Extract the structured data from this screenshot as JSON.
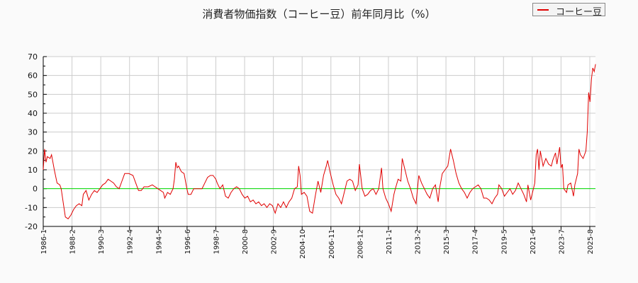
{
  "title": "消費者物価指数（コーヒー豆）前年同月比（%）",
  "legend": {
    "label": "コーヒー豆",
    "color": "#e00000"
  },
  "colors": {
    "series": "#e00000",
    "zero_line": "#00dd00",
    "grid": "#cccccc",
    "axis": "#000000",
    "background": "#fafafa"
  },
  "chart_data": {
    "type": "line",
    "title": "消費者物価指数（コーヒー豆）前年同月比（%）",
    "xlabel": "",
    "ylabel": "",
    "ylim": [
      -20,
      70
    ],
    "yticks": [
      -20,
      -10,
      0,
      10,
      20,
      30,
      40,
      50,
      60,
      70
    ],
    "xticks": [
      "1986-1",
      "1988-2",
      "1990-3",
      "1992-4",
      "1994-5",
      "1996-6",
      "1998-7",
      "2000-8",
      "2002-9",
      "2004-10",
      "2006-11",
      "2008-12",
      "2011-1",
      "2013-2",
      "2015-3",
      "2017-4",
      "2019-5",
      "2021-6",
      "2023-7",
      "2025-8"
    ],
    "grid": true,
    "legend_position": "top-right",
    "series": [
      {
        "name": "コーヒー豆",
        "points": [
          [
            1986.0,
            10
          ],
          [
            1986.1,
            21
          ],
          [
            1986.2,
            14
          ],
          [
            1986.3,
            17
          ],
          [
            1986.5,
            16
          ],
          [
            1986.6,
            18
          ],
          [
            1986.8,
            10
          ],
          [
            1987.0,
            3
          ],
          [
            1987.2,
            2
          ],
          [
            1987.3,
            0
          ],
          [
            1987.5,
            -10
          ],
          [
            1987.6,
            -15
          ],
          [
            1987.8,
            -16
          ],
          [
            1988.0,
            -14
          ],
          [
            1988.2,
            -11
          ],
          [
            1988.4,
            -9
          ],
          [
            1988.6,
            -8
          ],
          [
            1988.8,
            -9
          ],
          [
            1988.9,
            -3
          ],
          [
            1989.1,
            -1
          ],
          [
            1989.3,
            -6
          ],
          [
            1989.5,
            -3
          ],
          [
            1989.7,
            -1
          ],
          [
            1989.9,
            -2
          ],
          [
            1990.1,
            0
          ],
          [
            1990.3,
            2
          ],
          [
            1990.5,
            3
          ],
          [
            1990.7,
            5
          ],
          [
            1990.9,
            4
          ],
          [
            1991.1,
            3
          ],
          [
            1991.3,
            1
          ],
          [
            1991.5,
            0
          ],
          [
            1991.7,
            4
          ],
          [
            1991.9,
            8
          ],
          [
            1992.2,
            8
          ],
          [
            1992.5,
            7
          ],
          [
            1992.7,
            3
          ],
          [
            1992.9,
            -1
          ],
          [
            1993.1,
            -1
          ],
          [
            1993.3,
            1
          ],
          [
            1993.6,
            1
          ],
          [
            1993.9,
            2
          ],
          [
            1994.1,
            1
          ],
          [
            1994.3,
            0
          ],
          [
            1994.5,
            -1
          ],
          [
            1994.7,
            -2
          ],
          [
            1994.8,
            -5
          ],
          [
            1995.0,
            -2
          ],
          [
            1995.2,
            -3
          ],
          [
            1995.4,
            0
          ],
          [
            1995.5,
            5
          ],
          [
            1995.6,
            14
          ],
          [
            1995.7,
            11
          ],
          [
            1995.8,
            12
          ],
          [
            1996.0,
            9
          ],
          [
            1996.2,
            8
          ],
          [
            1996.4,
            0
          ],
          [
            1996.5,
            -3
          ],
          [
            1996.7,
            -3
          ],
          [
            1996.9,
            0
          ],
          [
            1997.2,
            0
          ],
          [
            1997.5,
            0
          ],
          [
            1997.7,
            3
          ],
          [
            1997.9,
            6
          ],
          [
            1998.1,
            7
          ],
          [
            1998.3,
            7
          ],
          [
            1998.5,
            5
          ],
          [
            1998.6,
            3
          ],
          [
            1998.8,
            0
          ],
          [
            1999.0,
            2
          ],
          [
            1999.2,
            -4
          ],
          [
            1999.4,
            -5
          ],
          [
            1999.6,
            -2
          ],
          [
            1999.8,
            0
          ],
          [
            2000.0,
            1
          ],
          [
            2000.2,
            0
          ],
          [
            2000.4,
            -3
          ],
          [
            2000.6,
            -5
          ],
          [
            2000.8,
            -4
          ],
          [
            2001.0,
            -7
          ],
          [
            2001.2,
            -6
          ],
          [
            2001.4,
            -8
          ],
          [
            2001.6,
            -7
          ],
          [
            2001.8,
            -9
          ],
          [
            2002.0,
            -8
          ],
          [
            2002.2,
            -10
          ],
          [
            2002.4,
            -8
          ],
          [
            2002.6,
            -9
          ],
          [
            2002.8,
            -13
          ],
          [
            2003.0,
            -8
          ],
          [
            2003.2,
            -10
          ],
          [
            2003.4,
            -7
          ],
          [
            2003.6,
            -10
          ],
          [
            2003.8,
            -7
          ],
          [
            2004.0,
            -5
          ],
          [
            2004.2,
            0
          ],
          [
            2004.4,
            1
          ],
          [
            2004.5,
            12
          ],
          [
            2004.6,
            7
          ],
          [
            2004.7,
            -3
          ],
          [
            2004.9,
            -2
          ],
          [
            2005.1,
            -4
          ],
          [
            2005.3,
            -12
          ],
          [
            2005.5,
            -13
          ],
          [
            2005.7,
            -4
          ],
          [
            2005.9,
            4
          ],
          [
            2006.1,
            -2
          ],
          [
            2006.3,
            7
          ],
          [
            2006.5,
            12
          ],
          [
            2006.6,
            15
          ],
          [
            2006.8,
            8
          ],
          [
            2007.0,
            2
          ],
          [
            2007.2,
            -3
          ],
          [
            2007.4,
            -5
          ],
          [
            2007.6,
            -8
          ],
          [
            2007.8,
            -2
          ],
          [
            2008.0,
            4
          ],
          [
            2008.2,
            5
          ],
          [
            2008.4,
            4
          ],
          [
            2008.6,
            -1
          ],
          [
            2008.8,
            2
          ],
          [
            2008.9,
            13
          ],
          [
            2009.1,
            0
          ],
          [
            2009.3,
            -4
          ],
          [
            2009.5,
            -3
          ],
          [
            2009.7,
            -1
          ],
          [
            2009.9,
            0
          ],
          [
            2010.1,
            -3
          ],
          [
            2010.3,
            0
          ],
          [
            2010.5,
            11
          ],
          [
            2010.6,
            0
          ],
          [
            2010.8,
            -5
          ],
          [
            2011.0,
            -8
          ],
          [
            2011.2,
            -12
          ],
          [
            2011.4,
            -3
          ],
          [
            2011.5,
            0
          ],
          [
            2011.7,
            5
          ],
          [
            2011.9,
            4
          ],
          [
            2012.0,
            16
          ],
          [
            2012.2,
            10
          ],
          [
            2012.4,
            4
          ],
          [
            2012.6,
            0
          ],
          [
            2012.8,
            -5
          ],
          [
            2013.0,
            -8
          ],
          [
            2013.2,
            7
          ],
          [
            2013.4,
            3
          ],
          [
            2013.6,
            0
          ],
          [
            2013.8,
            -3
          ],
          [
            2014.0,
            -5
          ],
          [
            2014.2,
            0
          ],
          [
            2014.4,
            2
          ],
          [
            2014.6,
            -7
          ],
          [
            2014.7,
            0
          ],
          [
            2014.9,
            8
          ],
          [
            2015.1,
            10
          ],
          [
            2015.3,
            12
          ],
          [
            2015.5,
            21
          ],
          [
            2015.7,
            15
          ],
          [
            2015.9,
            8
          ],
          [
            2016.1,
            3
          ],
          [
            2016.3,
            0
          ],
          [
            2016.5,
            -2
          ],
          [
            2016.7,
            -5
          ],
          [
            2016.9,
            -2
          ],
          [
            2017.1,
            0
          ],
          [
            2017.3,
            1
          ],
          [
            2017.5,
            2
          ],
          [
            2017.7,
            0
          ],
          [
            2017.9,
            -5
          ],
          [
            2018.1,
            -5
          ],
          [
            2018.3,
            -6
          ],
          [
            2018.5,
            -8
          ],
          [
            2018.7,
            -5
          ],
          [
            2018.9,
            -3
          ],
          [
            2019.0,
            2
          ],
          [
            2019.2,
            0
          ],
          [
            2019.4,
            -4
          ],
          [
            2019.6,
            -2
          ],
          [
            2019.8,
            0
          ],
          [
            2020.0,
            -3
          ],
          [
            2020.2,
            -1
          ],
          [
            2020.4,
            3
          ],
          [
            2020.6,
            0
          ],
          [
            2020.8,
            -3
          ],
          [
            2021.0,
            -7
          ],
          [
            2021.1,
            2
          ],
          [
            2021.3,
            -6
          ],
          [
            2021.5,
            0
          ],
          [
            2021.6,
            3
          ],
          [
            2021.7,
            18
          ],
          [
            2021.8,
            21
          ],
          [
            2021.9,
            10
          ],
          [
            2022.0,
            20
          ],
          [
            2022.2,
            12
          ],
          [
            2022.4,
            16
          ],
          [
            2022.6,
            13
          ],
          [
            2022.8,
            12
          ],
          [
            2022.9,
            15
          ],
          [
            2023.1,
            19
          ],
          [
            2023.2,
            13
          ],
          [
            2023.4,
            22
          ],
          [
            2023.5,
            11
          ],
          [
            2023.6,
            13
          ],
          [
            2023.7,
            0
          ],
          [
            2023.9,
            -2
          ],
          [
            2024.0,
            2
          ],
          [
            2024.2,
            3
          ],
          [
            2024.4,
            -4
          ],
          [
            2024.5,
            2
          ],
          [
            2024.7,
            8
          ],
          [
            2024.8,
            21
          ],
          [
            2024.9,
            18
          ],
          [
            2025.1,
            16
          ],
          [
            2025.3,
            20
          ],
          [
            2025.4,
            30
          ],
          [
            2025.5,
            51
          ],
          [
            2025.6,
            46
          ],
          [
            2025.7,
            58
          ],
          [
            2025.8,
            64
          ],
          [
            2025.9,
            62
          ],
          [
            2026.0,
            66
          ]
        ]
      }
    ]
  }
}
